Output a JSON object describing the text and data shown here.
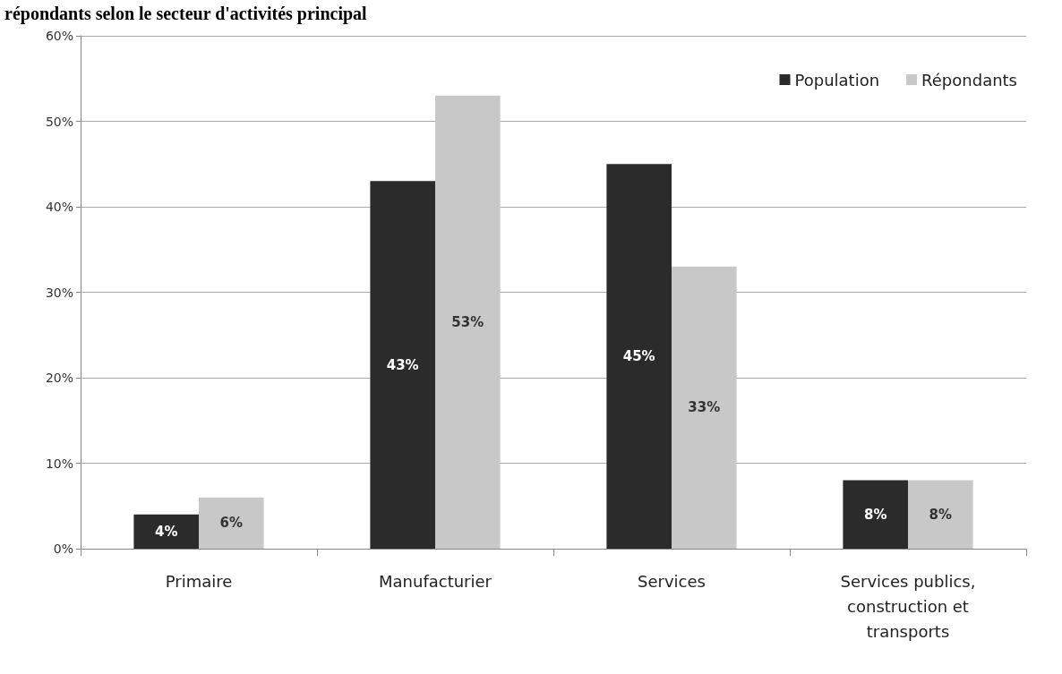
{
  "chart_data": {
    "type": "bar",
    "title": "répondants selon le secteur d'activités principal",
    "categories": [
      "Primaire",
      "Manufacturier",
      "Services",
      "Services publics,\nconstruction et\ntransports"
    ],
    "series": [
      {
        "name": "Population",
        "color": "#2b2b2b",
        "values": [
          4,
          43,
          45,
          8
        ],
        "value_labels": [
          "4%",
          "43%",
          "45%",
          "8%"
        ]
      },
      {
        "name": "Répondants",
        "color": "#c8c8c8",
        "values": [
          6,
          53,
          33,
          8
        ],
        "value_labels": [
          "6%",
          "53%",
          "33%",
          "8%"
        ]
      }
    ],
    "ylim": [
      0,
      60
    ],
    "yticks": [
      {
        "value": 0,
        "label": "0%"
      },
      {
        "value": 10,
        "label": "10%"
      },
      {
        "value": 20,
        "label": "20%"
      },
      {
        "value": 30,
        "label": "30%"
      },
      {
        "value": 40,
        "label": "40%"
      },
      {
        "value": 50,
        "label": "50%"
      },
      {
        "value": 60,
        "label": "60%"
      }
    ],
    "grid": "y",
    "legend": "top right"
  }
}
